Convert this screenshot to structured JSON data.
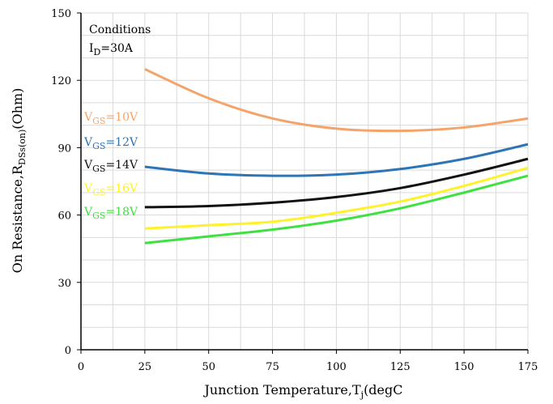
{
  "chart_data": {
    "type": "line",
    "title": "",
    "xlabel": {
      "main": "Junction Temperature,T",
      "sub": "j",
      "tail": "(degC"
    },
    "ylabel": {
      "main": "On Resistance,R",
      "sub": "DSs(on)",
      "tail": "(Ohm)"
    },
    "xlim": [
      0,
      175
    ],
    "ylim": [
      0,
      150
    ],
    "x_ticks": [
      0,
      25,
      50,
      75,
      100,
      125,
      150,
      175
    ],
    "y_ticks": [
      0,
      30,
      60,
      90,
      120,
      150
    ],
    "grid": true,
    "conditions": {
      "heading": "Conditions",
      "id_main": "I",
      "id_sub": "D",
      "id_value": "=30A"
    },
    "series": [
      {
        "label_main": "V",
        "label_sub": "GS",
        "label_value": "=10V",
        "color": "#F4A46B",
        "x": [
          25,
          50,
          75,
          100,
          125,
          150,
          175
        ],
        "y": [
          125,
          112,
          103,
          98.5,
          97.5,
          99,
          103
        ]
      },
      {
        "label_main": "V",
        "label_sub": "GS",
        "label_value": "=12V",
        "color": "#2E75B6",
        "x": [
          25,
          50,
          75,
          100,
          125,
          150,
          175
        ],
        "y": [
          81.5,
          78.5,
          77.5,
          78,
          80.5,
          85,
          91.5
        ]
      },
      {
        "label_main": "V",
        "label_sub": "GS",
        "label_value": "=14V",
        "color": "#111111",
        "x": [
          25,
          50,
          75,
          100,
          125,
          150,
          175
        ],
        "y": [
          63.5,
          64,
          65.5,
          68,
          72,
          78,
          85
        ]
      },
      {
        "label_main": "V",
        "label_sub": "GS",
        "label_value": "=16V",
        "color": "#FFF22A",
        "x": [
          25,
          50,
          75,
          100,
          125,
          150,
          175
        ],
        "y": [
          54,
          55.5,
          57,
          61,
          66,
          73,
          81
        ]
      },
      {
        "label_main": "V",
        "label_sub": "GS",
        "label_value": "=18V",
        "color": "#3EE042",
        "x": [
          25,
          50,
          75,
          100,
          125,
          150,
          175
        ],
        "y": [
          47.5,
          50.5,
          53.5,
          57.5,
          63,
          70,
          77.5
        ]
      }
    ]
  }
}
